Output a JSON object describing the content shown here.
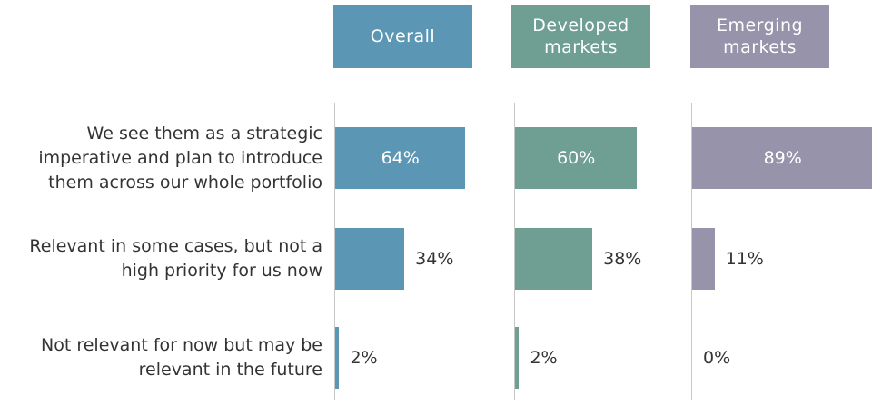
{
  "chart_data": {
    "type": "bar",
    "categories": [
      "We see them as a strategic imperative and plan to introduce them across our whole portfolio",
      "Relevant in some cases, but not a high priority for us now",
      "Not relevant for now but may be relevant in the future"
    ],
    "xlim": [
      0,
      100
    ],
    "series": [
      {
        "name": "Overall",
        "color": "#5b97b5",
        "values": [
          64,
          34,
          2
        ],
        "value_labels": [
          "64%",
          "34%",
          "2%"
        ]
      },
      {
        "name": "Developed markets",
        "color": "#6f9e93",
        "values": [
          60,
          38,
          2
        ],
        "value_labels": [
          "60%",
          "38%",
          "2%"
        ]
      },
      {
        "name": "Emerging markets",
        "color": "#9793ab",
        "values": [
          89,
          11,
          0
        ],
        "value_labels": [
          "89%",
          "11%",
          "0%"
        ]
      }
    ]
  }
}
